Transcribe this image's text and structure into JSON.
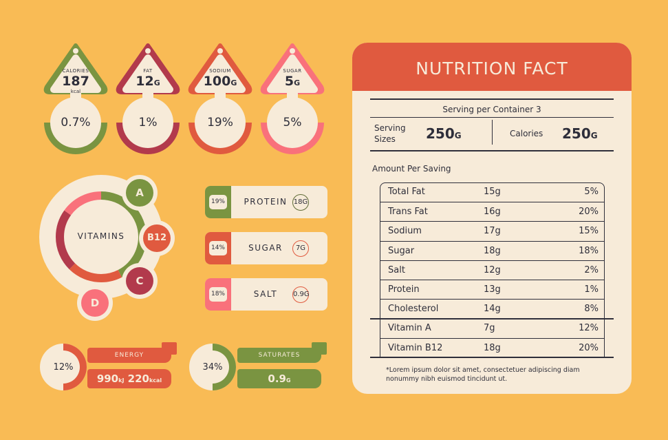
{
  "colors": {
    "background": "#F9BB55",
    "cream": "#F7EBD9",
    "green": "#7A9441",
    "maroon": "#B23A4C",
    "orange": "#E05A3F",
    "pink": "#F9717B",
    "text": "#2E2E3A"
  },
  "tags": [
    {
      "label": "CALORIES",
      "value": "187",
      "unit": "kcal",
      "suffix": "",
      "percent": "0.7%",
      "color": "#7A9441"
    },
    {
      "label": "FAT",
      "value": "12",
      "unit": "",
      "suffix": "G",
      "percent": "1%",
      "color": "#B23A4C"
    },
    {
      "label": "SODIUM",
      "value": "100",
      "unit": "",
      "suffix": "G",
      "percent": "19%",
      "color": "#E05A3F"
    },
    {
      "label": "SUGAR",
      "value": "5",
      "unit": "",
      "suffix": "G",
      "percent": "5%",
      "color": "#F9717B"
    }
  ],
  "vitamins": {
    "title": "VITAMINS",
    "items": [
      "A",
      "B12",
      "C",
      "D"
    ]
  },
  "pills": [
    {
      "percent": "19%",
      "name": "PROTEIN",
      "amount": "18G",
      "color": "#7A9441",
      "dark": "#5E6B35"
    },
    {
      "percent": "14%",
      "name": "SUGAR",
      "amount": "7G",
      "color": "#E05A3F",
      "dark": "#E05A3F"
    },
    {
      "percent": "18%",
      "name": "SALT",
      "amount": "0.9G",
      "color": "#F9717B",
      "dark": "#E05A3F"
    }
  ],
  "energy": {
    "percent": "12%",
    "label": "ENERGY",
    "kj": "990",
    "kj_unit": "kJ",
    "kcal": "220",
    "kcal_unit": "kcal",
    "fraction": 0.5
  },
  "saturates": {
    "percent": "34%",
    "label": "SATURATES",
    "value": "0.9",
    "unit": "G",
    "fraction": 0.5
  },
  "facts": {
    "title": "NUTRITION FACT",
    "serving_per_container": "Serving per Container 3",
    "serving_sizes_label": "Serving Sizes",
    "serving_sizes_value": "250",
    "serving_unit": "G",
    "calories_label": "Calories",
    "calories_value": "250",
    "calories_unit": "G",
    "amount_heading": "Amount Per Saving",
    "rows": [
      [
        "Total Fat",
        "15g",
        "5%"
      ],
      [
        "Trans Fat",
        "16g",
        "20%"
      ],
      [
        "Sodium",
        "17g",
        "15%"
      ],
      [
        "Sugar",
        "18g",
        "18%"
      ],
      [
        "Salt",
        "12g",
        "2%"
      ],
      [
        "Protein",
        "13g",
        "1%"
      ],
      [
        "Cholesterol",
        "14g",
        "8%"
      ],
      [
        "Vitamin A",
        "7g",
        "12%"
      ],
      [
        "Vitamin B12",
        "18g",
        "20%"
      ]
    ],
    "footnote": "*Lorem ipsum dolor sit amet, consectetuer adipiscing diam nonummy nibh euismod tincidunt ut."
  }
}
